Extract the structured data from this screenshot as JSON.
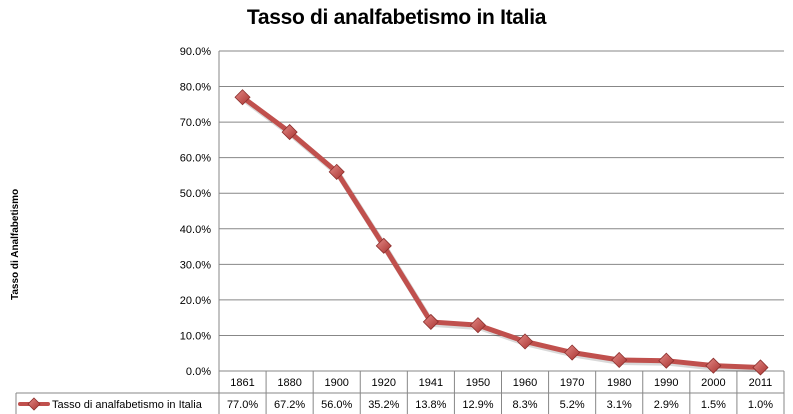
{
  "chart_data": {
    "type": "line",
    "title": "Tasso di analfabetismo in Italia",
    "ylabel": "Tasso di Analfabetismo",
    "xlabel": "",
    "categories": [
      "1861",
      "1880",
      "1900",
      "1920",
      "1941",
      "1950",
      "1960",
      "1970",
      "1980",
      "1990",
      "2000",
      "2011"
    ],
    "series": [
      {
        "name": "Tasso di analfabetismo  in Italia",
        "values": [
          77.0,
          67.2,
          56.0,
          35.2,
          13.8,
          12.9,
          8.3,
          5.2,
          3.1,
          2.9,
          1.5,
          1.0
        ],
        "labels": [
          "77.0%",
          "67.2%",
          "56.0%",
          "35.2%",
          "13.8%",
          "12.9%",
          "8.3%",
          "5.2%",
          "3.1%",
          "2.9%",
          "1.5%",
          "1.0%"
        ],
        "color": "#c0504d",
        "marker": "diamond"
      }
    ],
    "ylim": [
      0,
      90
    ],
    "yticks": [
      "0.0%",
      "10.0%",
      "20.0%",
      "30.0%",
      "40.0%",
      "50.0%",
      "60.0%",
      "70.0%",
      "80.0%",
      "90.0%"
    ],
    "grid": true,
    "data_table": true,
    "legend": "data-table-left",
    "colors": {
      "line": "#c0504d",
      "line_dark": "#8b2f2d",
      "grid": "#878787",
      "axis": "#878787"
    }
  }
}
